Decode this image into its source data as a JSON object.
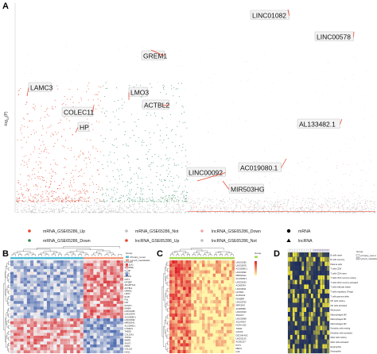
{
  "panels": {
    "a": "A",
    "b": "B",
    "c": "C",
    "d": "D"
  },
  "colors": {
    "mrna_up": "#e8432b",
    "mrna_down": "#2e8b57",
    "mrna_not": "#bfbfbf",
    "lncrna_up": "#e8432b",
    "lncrna_down": "#f5a3a3",
    "lncrna_not": "#bfbfbf",
    "heat_low": "#3b5ba8",
    "heat_mid": "#f2f2f2",
    "heat_high": "#d7282c",
    "heat_c_low": "#fff6a8",
    "heat_c_high": "#e0202a",
    "heat_d_low": "#1b2b5e",
    "heat_d_high": "#f0e53a",
    "group_primary": "#4dbbd5",
    "group_metastasis": "#f39b7f",
    "group_bar_c": "#a6d854"
  },
  "chart_data": [
    {
      "type": "scatter",
      "panel": "A",
      "ylabel": "-log10(P)",
      "ylabel_parts": {
        "main": "-log",
        "sub": "10",
        "tail": "(P)"
      },
      "annotations": [
        "LINC01082",
        "LINC00578",
        "GREM1",
        "LAMC3",
        "LMO3",
        "ACTBL2",
        "COLEC11",
        "HP",
        "AL133482.1",
        "AC019080.1",
        "LINC00092",
        "MIR503HG"
      ],
      "legend": {
        "mrna_up": "mRNA_GSE65286_Up",
        "mrna_down": "mRNA_GSE65286_Down",
        "mrna_not": "mRNA_GSE65286_Not",
        "lncrna_up": "lncRNA_GSE65286_Up",
        "lncrna_down": "lncRNA_GSE65286_Down",
        "lncrna_not": "lncRNA_GSE65286_Not",
        "mrna_shape": "mRNA",
        "lncrna_shape": "lncRNA"
      }
    },
    {
      "type": "heatmap",
      "panel": "B",
      "legend_title": "Group",
      "groups": [
        "Primary_tumor",
        "Lymph_metastasis"
      ],
      "rows": [
        "HOXC10",
        "COL11A1",
        "SERPINE",
        "COMP",
        "SPP1",
        "MMP11",
        "CST1",
        "IGF2BP",
        "ADAMTS12",
        "ACTBL2",
        "GREM1",
        "LMO3",
        "DLX5",
        "FN1",
        "FAP",
        "POSTN",
        "INHBA",
        "LINC01082",
        "LINC00578",
        "AC019080.1",
        "LINC00092",
        "MIR503HG",
        "AL133482.1",
        "CTHRC1",
        "THBS2",
        "COL10A1",
        "TOP2A",
        "WISP1",
        "SULF1",
        "FBN2",
        "COL1A1",
        "HAS2"
      ]
    },
    {
      "type": "heatmap",
      "panel": "C",
      "legend_title": "Group",
      "rows": [
        "LINC01082",
        "LINC00578",
        "AC019080.1",
        "LINC00092",
        "MIR503HG",
        "AL133482.1",
        "LINC00163",
        "AC008764",
        "LINC00511",
        "HOTAIR",
        "AL391012",
        "FENDRR",
        "LINC00702",
        "MIR22HG",
        "AC005586",
        "LINC01503",
        "SNHG17",
        "LINC00968",
        "AC104024",
        "HOXA-AS2",
        "TINCR",
        "CASC9",
        "DSCAM-AS1",
        "LINC01133",
        "AC092127",
        "PVT1",
        "MEG3",
        "H19"
      ]
    },
    {
      "type": "heatmap",
      "panel": "D",
      "legend_title": "Group",
      "groups": [
        "primary_tumor",
        "lymph_metastasis"
      ],
      "rows": [
        "B cells naive",
        "B cells memory",
        "Plasma cells",
        "T cells CD8",
        "T cells CD4 naive",
        "T cells CD4 memory resting",
        "T cells CD4 memory activated",
        "T cells follicular helper",
        "T cells regulatory (Tregs)",
        "T cells gamma delta",
        "NK cells resting",
        "NK cells activated",
        "Monocytes",
        "Macrophages M0",
        "Macrophages M1",
        "Macrophages M2",
        "Dendritic cells resting",
        "Dendritic cells activated",
        "Mast cells resting",
        "Mast cells activated",
        "Eosinophils",
        "Neutrophils"
      ]
    }
  ]
}
